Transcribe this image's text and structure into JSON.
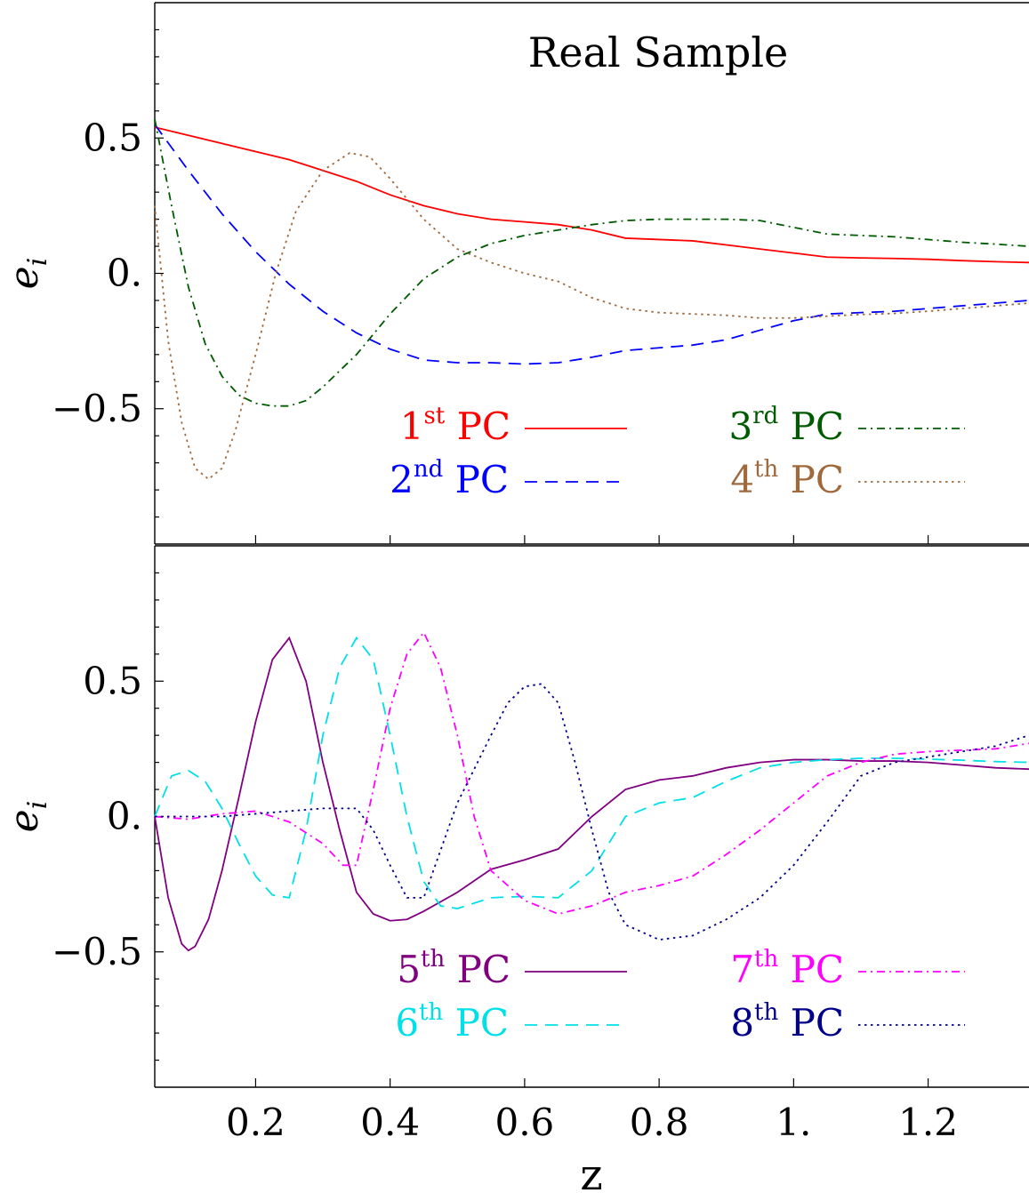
{
  "chart_data": [
    {
      "type": "line",
      "title": "Real Sample",
      "xlabel": "",
      "ylabel": "e_i",
      "xlim": [
        0.05,
        1.35
      ],
      "ylim": [
        -1.0,
        1.0
      ],
      "yticks": [
        {
          "value": 0.5,
          "label": "0.5"
        },
        {
          "value": 0.0,
          "label": "0."
        },
        {
          "value": -0.5,
          "label": "−0.5"
        }
      ],
      "legend_placement": "bottom-right, two columns",
      "series": [
        {
          "ordinal": "1",
          "suffix": "st",
          "name_rest": "PC",
          "color": "#ff0000",
          "dash": "solid",
          "x": [
            0.05,
            0.1,
            0.15,
            0.2,
            0.25,
            0.3,
            0.35,
            0.4,
            0.45,
            0.5,
            0.55,
            0.6,
            0.65,
            0.7,
            0.75,
            0.8,
            0.85,
            0.9,
            0.95,
            1.0,
            1.05,
            1.1,
            1.15,
            1.2,
            1.25,
            1.3,
            1.35
          ],
          "y": [
            0.54,
            0.51,
            0.48,
            0.45,
            0.42,
            0.38,
            0.34,
            0.29,
            0.25,
            0.22,
            0.2,
            0.19,
            0.18,
            0.16,
            0.13,
            0.125,
            0.12,
            0.105,
            0.09,
            0.075,
            0.06,
            0.057,
            0.055,
            0.052,
            0.047,
            0.043,
            0.04
          ]
        },
        {
          "ordinal": "2",
          "suffix": "nd",
          "name_rest": "PC",
          "color": "#0000ff",
          "dash": "long-dash",
          "x": [
            0.05,
            0.1,
            0.15,
            0.2,
            0.25,
            0.3,
            0.35,
            0.4,
            0.45,
            0.5,
            0.55,
            0.6,
            0.65,
            0.7,
            0.75,
            0.8,
            0.85,
            0.9,
            0.95,
            1.0,
            1.05,
            1.1,
            1.15,
            1.2,
            1.25,
            1.3,
            1.35
          ],
          "y": [
            0.55,
            0.38,
            0.22,
            0.08,
            -0.04,
            -0.14,
            -0.22,
            -0.28,
            -0.32,
            -0.33,
            -0.33,
            -0.335,
            -0.33,
            -0.31,
            -0.285,
            -0.275,
            -0.265,
            -0.245,
            -0.21,
            -0.175,
            -0.15,
            -0.145,
            -0.14,
            -0.13,
            -0.12,
            -0.11,
            -0.1
          ]
        },
        {
          "ordinal": "3",
          "suffix": "rd",
          "name_rest": "PC",
          "color": "#005a00",
          "dash": "dash-dot",
          "x": [
            0.05,
            0.075,
            0.1,
            0.125,
            0.15,
            0.175,
            0.2,
            0.225,
            0.25,
            0.275,
            0.3,
            0.35,
            0.4,
            0.45,
            0.5,
            0.55,
            0.6,
            0.65,
            0.7,
            0.75,
            0.8,
            0.85,
            0.9,
            0.95,
            1.0,
            1.05,
            1.1,
            1.15,
            1.2,
            1.25,
            1.3,
            1.35
          ],
          "y": [
            0.57,
            0.25,
            -0.05,
            -0.26,
            -0.38,
            -0.45,
            -0.48,
            -0.49,
            -0.49,
            -0.47,
            -0.42,
            -0.3,
            -0.15,
            -0.02,
            0.06,
            0.11,
            0.14,
            0.16,
            0.18,
            0.195,
            0.2,
            0.2,
            0.2,
            0.195,
            0.17,
            0.145,
            0.14,
            0.135,
            0.125,
            0.115,
            0.108,
            0.1
          ]
        },
        {
          "ordinal": "4",
          "suffix": "th",
          "name_rest": "PC",
          "color": "#a0693c",
          "dash": "dotted",
          "x": [
            0.05,
            0.07,
            0.09,
            0.11,
            0.13,
            0.15,
            0.17,
            0.2,
            0.23,
            0.26,
            0.3,
            0.34,
            0.37,
            0.4,
            0.45,
            0.5,
            0.55,
            0.6,
            0.65,
            0.7,
            0.75,
            0.8,
            0.85,
            0.9,
            0.95,
            1.0,
            1.05,
            1.1,
            1.15,
            1.2,
            1.25,
            1.3,
            1.35
          ],
          "y": [
            0.25,
            -0.25,
            -0.55,
            -0.72,
            -0.76,
            -0.72,
            -0.58,
            -0.3,
            0.0,
            0.23,
            0.38,
            0.445,
            0.43,
            0.35,
            0.2,
            0.09,
            0.04,
            0.0,
            -0.03,
            -0.09,
            -0.13,
            -0.145,
            -0.15,
            -0.155,
            -0.165,
            -0.165,
            -0.158,
            -0.152,
            -0.148,
            -0.14,
            -0.13,
            -0.12,
            -0.11
          ]
        }
      ]
    },
    {
      "type": "line",
      "title": "",
      "xlabel": "z",
      "ylabel": "e_i",
      "xlim": [
        0.05,
        1.35
      ],
      "ylim": [
        -1.0,
        1.0
      ],
      "xticks": [
        {
          "value": 0.2,
          "label": "0.2"
        },
        {
          "value": 0.4,
          "label": "0.4"
        },
        {
          "value": 0.6,
          "label": "0.6"
        },
        {
          "value": 0.8,
          "label": "0.8"
        },
        {
          "value": 1.0,
          "label": "1."
        },
        {
          "value": 1.2,
          "label": "1.2"
        }
      ],
      "yticks": [
        {
          "value": 0.5,
          "label": "0.5"
        },
        {
          "value": 0.0,
          "label": "0."
        },
        {
          "value": -0.5,
          "label": "−0.5"
        }
      ],
      "legend_placement": "bottom-right, two columns",
      "series": [
        {
          "ordinal": "5",
          "suffix": "th",
          "name_rest": "PC",
          "color": "#800080",
          "dash": "solid",
          "x": [
            0.05,
            0.07,
            0.09,
            0.1,
            0.11,
            0.13,
            0.15,
            0.175,
            0.2,
            0.225,
            0.25,
            0.275,
            0.3,
            0.325,
            0.35,
            0.375,
            0.4,
            0.425,
            0.45,
            0.5,
            0.55,
            0.6,
            0.65,
            0.7,
            0.75,
            0.8,
            0.85,
            0.9,
            0.95,
            1.0,
            1.05,
            1.1,
            1.15,
            1.2,
            1.25,
            1.3,
            1.35
          ],
          "y": [
            0.0,
            -0.3,
            -0.47,
            -0.495,
            -0.48,
            -0.38,
            -0.2,
            0.07,
            0.35,
            0.58,
            0.66,
            0.5,
            0.2,
            -0.05,
            -0.28,
            -0.36,
            -0.385,
            -0.38,
            -0.35,
            -0.28,
            -0.195,
            -0.16,
            -0.12,
            0.0,
            0.1,
            0.135,
            0.15,
            0.18,
            0.2,
            0.21,
            0.21,
            0.205,
            0.205,
            0.2,
            0.19,
            0.18,
            0.175
          ]
        },
        {
          "ordinal": "6",
          "suffix": "th",
          "name_rest": "PC",
          "color": "#00e0e8",
          "dash": "long-dash",
          "x": [
            0.05,
            0.075,
            0.1,
            0.125,
            0.15,
            0.175,
            0.2,
            0.225,
            0.25,
            0.275,
            0.3,
            0.325,
            0.35,
            0.375,
            0.4,
            0.425,
            0.45,
            0.475,
            0.5,
            0.55,
            0.6,
            0.65,
            0.7,
            0.75,
            0.8,
            0.85,
            0.9,
            0.95,
            1.0,
            1.05,
            1.1,
            1.15,
            1.2,
            1.25,
            1.3,
            1.35
          ],
          "y": [
            0.0,
            0.15,
            0.17,
            0.13,
            0.03,
            -0.1,
            -0.22,
            -0.29,
            -0.3,
            -0.05,
            0.3,
            0.55,
            0.66,
            0.58,
            0.3,
            0.0,
            -0.24,
            -0.33,
            -0.34,
            -0.3,
            -0.295,
            -0.3,
            -0.2,
            0.0,
            0.05,
            0.07,
            0.13,
            0.18,
            0.2,
            0.21,
            0.215,
            0.215,
            0.212,
            0.208,
            0.203,
            0.2
          ]
        },
        {
          "ordinal": "7",
          "suffix": "th",
          "name_rest": "PC",
          "color": "#ff00ff",
          "dash": "dash-dot",
          "x": [
            0.05,
            0.1,
            0.15,
            0.2,
            0.25,
            0.3,
            0.33,
            0.35,
            0.375,
            0.4,
            0.425,
            0.45,
            0.475,
            0.5,
            0.525,
            0.55,
            0.6,
            0.65,
            0.7,
            0.75,
            0.8,
            0.85,
            0.9,
            0.95,
            1.0,
            1.05,
            1.1,
            1.15,
            1.2,
            1.25,
            1.3,
            1.35
          ],
          "y": [
            0.0,
            -0.01,
            0.01,
            0.02,
            -0.02,
            -0.1,
            -0.18,
            -0.18,
            0.1,
            0.4,
            0.6,
            0.68,
            0.55,
            0.3,
            0.0,
            -0.2,
            -0.31,
            -0.36,
            -0.33,
            -0.28,
            -0.255,
            -0.22,
            -0.14,
            -0.05,
            0.05,
            0.15,
            0.2,
            0.23,
            0.24,
            0.245,
            0.25,
            0.27
          ]
        },
        {
          "ordinal": "8",
          "suffix": "th",
          "name_rest": "PC",
          "color": "#00008b",
          "dash": "dotted",
          "x": [
            0.05,
            0.1,
            0.15,
            0.2,
            0.25,
            0.3,
            0.35,
            0.375,
            0.4,
            0.425,
            0.45,
            0.5,
            0.55,
            0.575,
            0.6,
            0.625,
            0.65,
            0.675,
            0.7,
            0.725,
            0.75,
            0.8,
            0.85,
            0.9,
            0.95,
            1.0,
            1.05,
            1.1,
            1.15,
            1.2,
            1.25,
            1.3,
            1.35
          ],
          "y": [
            0.0,
            0.0,
            0.0,
            0.01,
            0.02,
            0.03,
            0.03,
            -0.05,
            -0.18,
            -0.3,
            -0.3,
            0.05,
            0.3,
            0.42,
            0.48,
            0.49,
            0.42,
            0.2,
            -0.05,
            -0.28,
            -0.4,
            -0.455,
            -0.44,
            -0.38,
            -0.3,
            -0.18,
            -0.02,
            0.15,
            0.2,
            0.22,
            0.24,
            0.26,
            0.3
          ]
        }
      ]
    }
  ]
}
